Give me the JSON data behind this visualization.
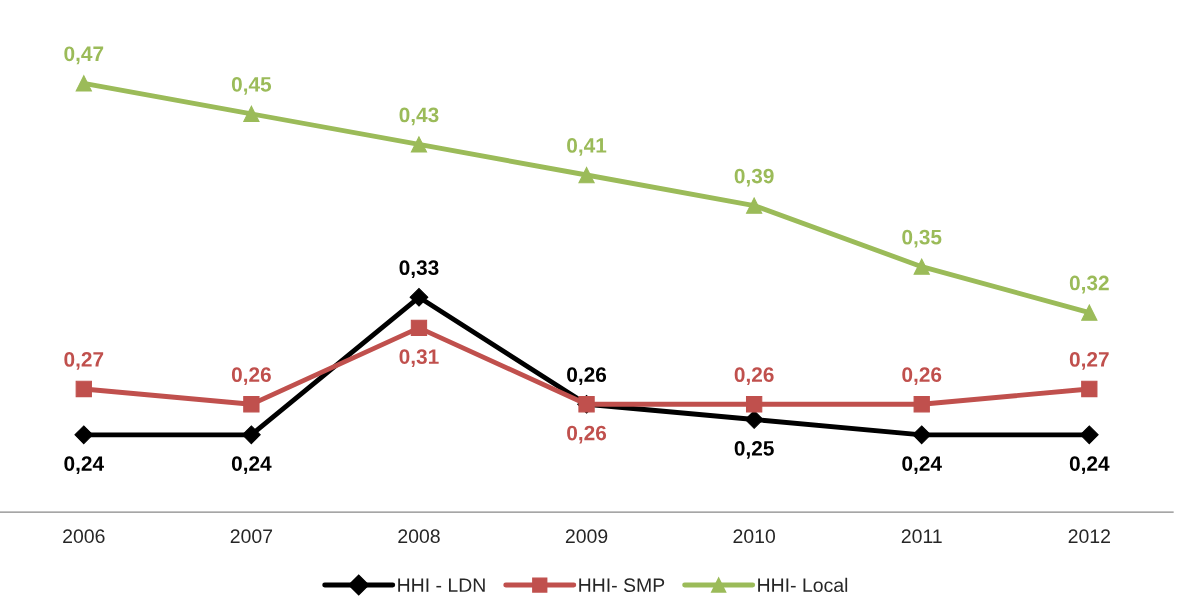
{
  "chart_data": {
    "type": "line",
    "categories": [
      "2006",
      "2007",
      "2008",
      "2009",
      "2010",
      "2011",
      "2012"
    ],
    "series": [
      {
        "name": "HHI - LDN",
        "color": "#000000",
        "marker": "diamond",
        "values": [
          0.24,
          0.24,
          0.33,
          0.26,
          0.25,
          0.24,
          0.24
        ],
        "value_labels": [
          "0,24",
          "0,24",
          "0,33",
          "0,26",
          "0,25",
          "0,24",
          "0,24"
        ]
      },
      {
        "name": "HHI- SMP",
        "color": "#c0504d",
        "marker": "square",
        "values": [
          0.27,
          0.26,
          0.31,
          0.26,
          0.26,
          0.26,
          0.27
        ],
        "value_labels": [
          "0,27",
          "0,26",
          "0,31",
          "0,26",
          "0,26",
          "0,26",
          "0,27"
        ]
      },
      {
        "name": "HHI- Local",
        "color": "#9bbb59",
        "marker": "triangle",
        "values": [
          0.47,
          0.45,
          0.43,
          0.41,
          0.39,
          0.35,
          0.32
        ],
        "value_labels": [
          "0,47",
          "0,45",
          "0,43",
          "0,41",
          "0,39",
          "0,35",
          "0,32"
        ]
      }
    ],
    "legend": "bottom",
    "tick_labels": "x",
    "line_style": "solid"
  }
}
